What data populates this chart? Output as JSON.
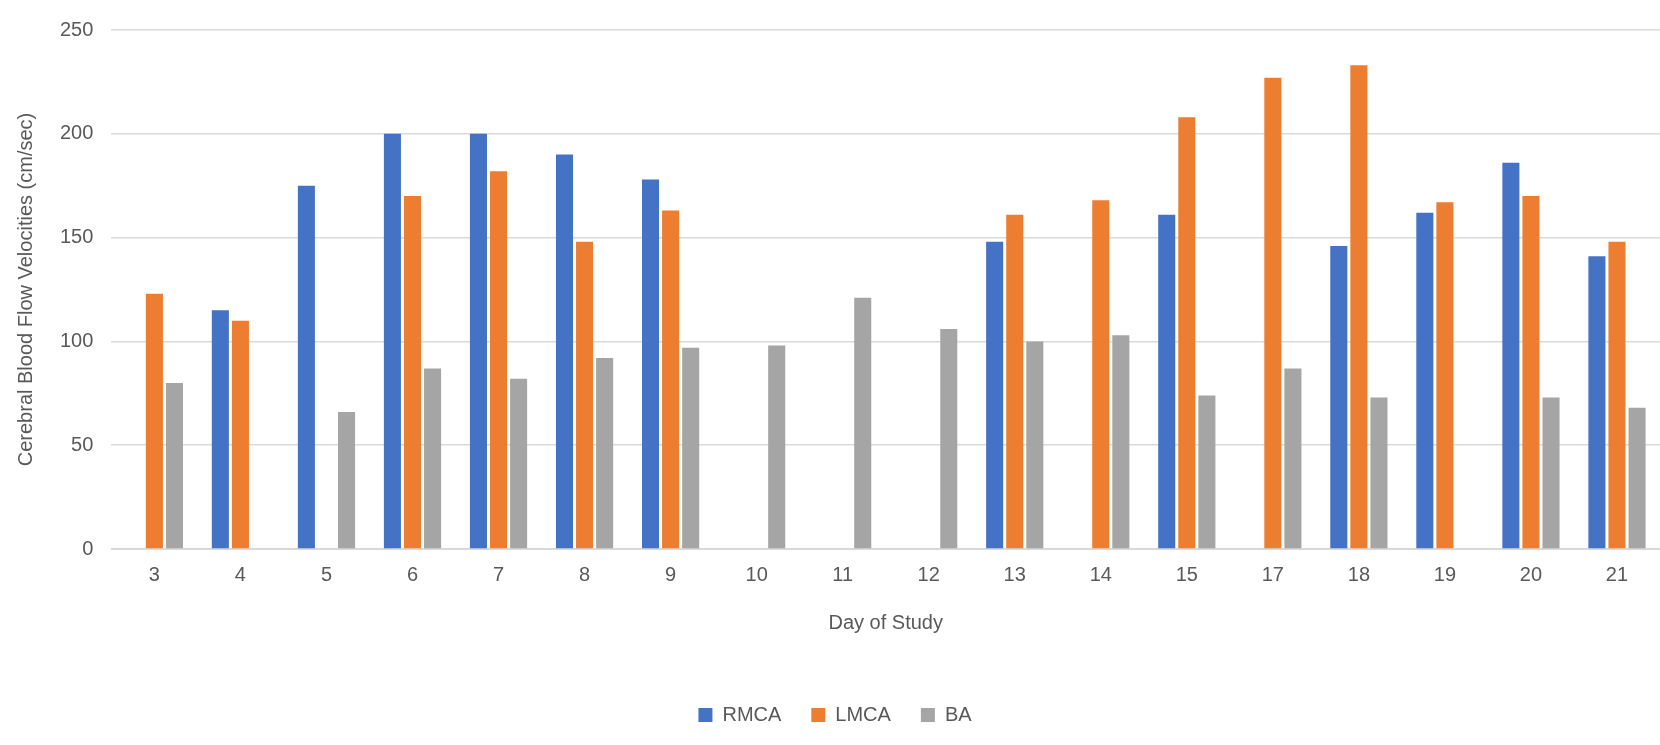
{
  "chart_data": {
    "type": "bar",
    "xlabel": "Day of Study",
    "ylabel": "Cerebral Blood Flow Velocities (cm/sec)",
    "categories": [
      "3",
      "4",
      "5",
      "6",
      "7",
      "8",
      "9",
      "10",
      "11",
      "12",
      "13",
      "14",
      "15",
      "17",
      "18",
      "19",
      "20",
      "21"
    ],
    "series": [
      {
        "name": "RMCA",
        "color": "#4472c4",
        "values": [
          null,
          115,
          175,
          200,
          200,
          190,
          178,
          null,
          null,
          null,
          148,
          null,
          161,
          null,
          146,
          162,
          186,
          141
        ]
      },
      {
        "name": "LMCA",
        "color": "#ed7d31",
        "values": [
          123,
          110,
          null,
          170,
          182,
          148,
          163,
          null,
          null,
          null,
          161,
          168,
          208,
          227,
          233,
          167,
          170,
          148
        ]
      },
      {
        "name": "BA",
        "color": "#a5a5a5",
        "values": [
          80,
          null,
          66,
          87,
          82,
          92,
          97,
          98,
          121,
          106,
          100,
          103,
          74,
          87,
          73,
          null,
          73,
          68
        ]
      }
    ],
    "ylim": [
      0,
      250
    ],
    "yticks": [
      0,
      50,
      100,
      150,
      200,
      250
    ],
    "grid": "y",
    "legend": "bottom"
  }
}
